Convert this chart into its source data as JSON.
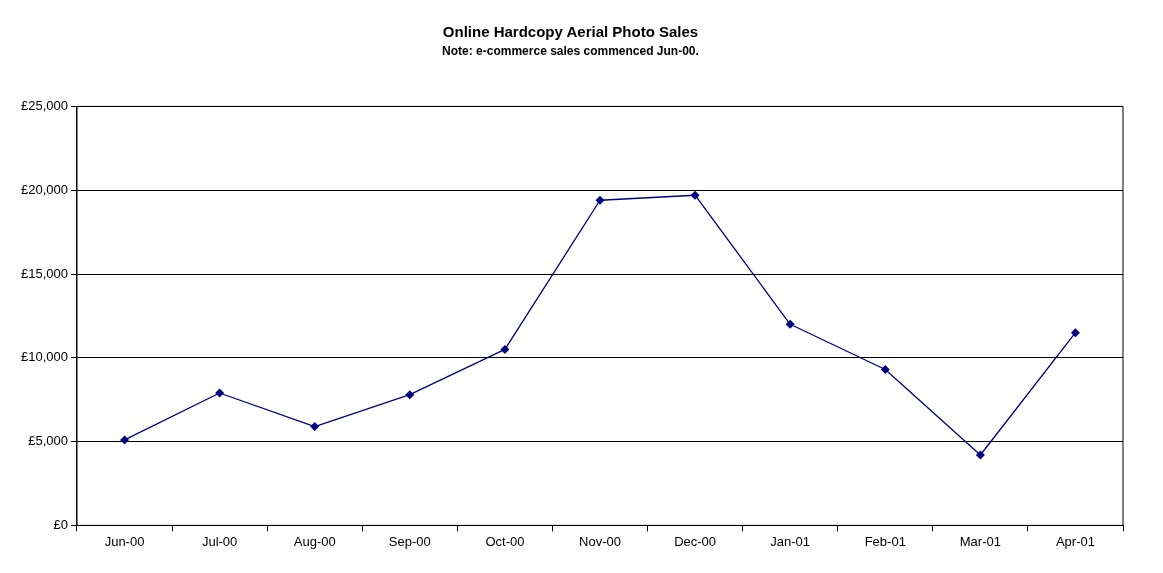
{
  "chart_data": {
    "type": "line",
    "title": "Online Hardcopy Aerial Photo Sales",
    "subtitle": "Note: e-commerce sales commenced Jun-00.",
    "categories": [
      "Jun-00",
      "Jul-00",
      "Aug-00",
      "Sep-00",
      "Oct-00",
      "Nov-00",
      "Dec-00",
      "Jan-01",
      "Feb-01",
      "Mar-01",
      "Apr-01"
    ],
    "series": [
      {
        "color": "#000080",
        "values": [
          5100,
          7900,
          5900,
          7800,
          10500,
          19400,
          19700,
          12000,
          9300,
          4200,
          11500
        ]
      }
    ],
    "ylim": [
      0,
      25000
    ],
    "yticks": [
      {
        "value": 0,
        "label": "£0"
      },
      {
        "value": 5000,
        "label": "£5,000"
      },
      {
        "value": 10000,
        "label": "£10,000"
      },
      {
        "value": 15000,
        "label": "£15,000"
      },
      {
        "value": 20000,
        "label": "£20,000"
      },
      {
        "value": 25000,
        "label": "£25,000"
      }
    ],
    "grid": "y",
    "marker": "diamond",
    "line_style": "solid"
  }
}
